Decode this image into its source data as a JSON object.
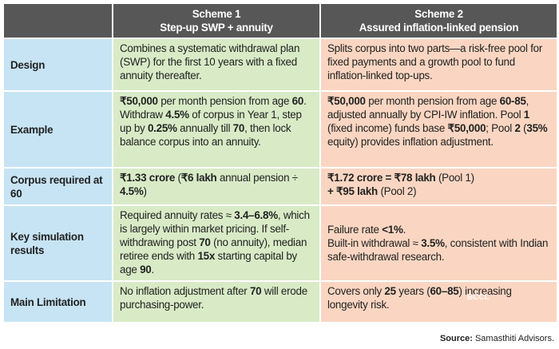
{
  "table": {
    "header": [
      [
        "Scheme 1",
        "Step-up SWP + annuity"
      ],
      [
        "Scheme 2",
        "Assured inflation-linked pension"
      ]
    ],
    "rows": [
      {
        "label": "Design",
        "s1": [
          "Combines a systematic withdrawal plan (SWP) for the first 10 years with a fixed annuity thereafter."
        ],
        "s2": [
          "Splits corpus into two parts—a risk-free pool for fixed payments and a growth pool to fund inflation-linked top-ups."
        ]
      },
      {
        "label": "Example",
        "s1": [
          {
            "text": "₹50,000",
            "bold": true
          },
          " per month pension from age ",
          {
            "text": "60",
            "bold": true
          },
          ". Withdraw ",
          {
            "text": "4.5%",
            "bold": true
          },
          " of corpus in Year 1, step up by ",
          {
            "text": "0.25%",
            "bold": true
          },
          " annually till ",
          {
            "text": "70",
            "bold": true
          },
          ", then lock balance corpus into an annuity."
        ],
        "s2": [
          {
            "text": "₹50,000",
            "bold": true
          },
          " per month pension from age ",
          {
            "text": "60-85",
            "bold": true
          },
          ", adjusted annually by CPI-IW inflation. Pool ",
          {
            "text": "1",
            "bold": true
          },
          " (fixed income) funds base ",
          {
            "text": "₹50,000",
            "bold": true
          },
          "; Pool ",
          {
            "text": "2",
            "bold": true
          },
          " (",
          {
            "text": "35%",
            "bold": true
          },
          " equity) provides inflation adjustment."
        ]
      },
      {
        "label": "Corpus required at 60",
        "s1": [
          {
            "text": "₹1.33 crore",
            "bold": true
          },
          " (",
          {
            "text": "₹6 lakh",
            "bold": true
          },
          " annual pension ÷ ",
          {
            "text": "4.5%",
            "bold": true
          },
          ")"
        ],
        "s2": [
          {
            "text": "₹1.72 crore = ₹78 lakh",
            "bold": true
          },
          " (Pool 1)\n",
          {
            "text": "+ ₹95 lakh",
            "bold": true
          },
          " (Pool 2)"
        ]
      },
      {
        "label": "Key simulation results",
        "s1": [
          "Required annuity rates ≈ ",
          {
            "text": "3.4–6.8%",
            "bold": true
          },
          ", which is largely within market pricing. If self-withdrawing post ",
          {
            "text": "70",
            "bold": true
          },
          " (no annuity), median retiree ends with ",
          {
            "text": "15x",
            "bold": true
          },
          " starting capital by age ",
          {
            "text": "90",
            "bold": true
          },
          "."
        ],
        "s2": [
          "Failure rate ",
          {
            "text": "<1%",
            "bold": true
          },
          ".\nBuilt-in withdrawal ≈ ",
          {
            "text": "3.5%",
            "bold": true
          },
          ", consistent with Indian safe-withdrawal research."
        ]
      },
      {
        "label": "Main Limitation",
        "s1": [
          "No inflation adjustment after ",
          {
            "text": "70",
            "bold": true
          },
          " will erode purchasing-power."
        ],
        "s2": [
          "Covers only ",
          {
            "text": "25",
            "bold": true
          },
          " years (",
          {
            "text": "60–85",
            "bold": true
          },
          ") increasing longevity risk."
        ]
      }
    ]
  },
  "watermark": "BCCL",
  "source": [
    {
      "text": "Source:",
      "bold": true
    },
    " Samasthiti Advisors."
  ]
}
